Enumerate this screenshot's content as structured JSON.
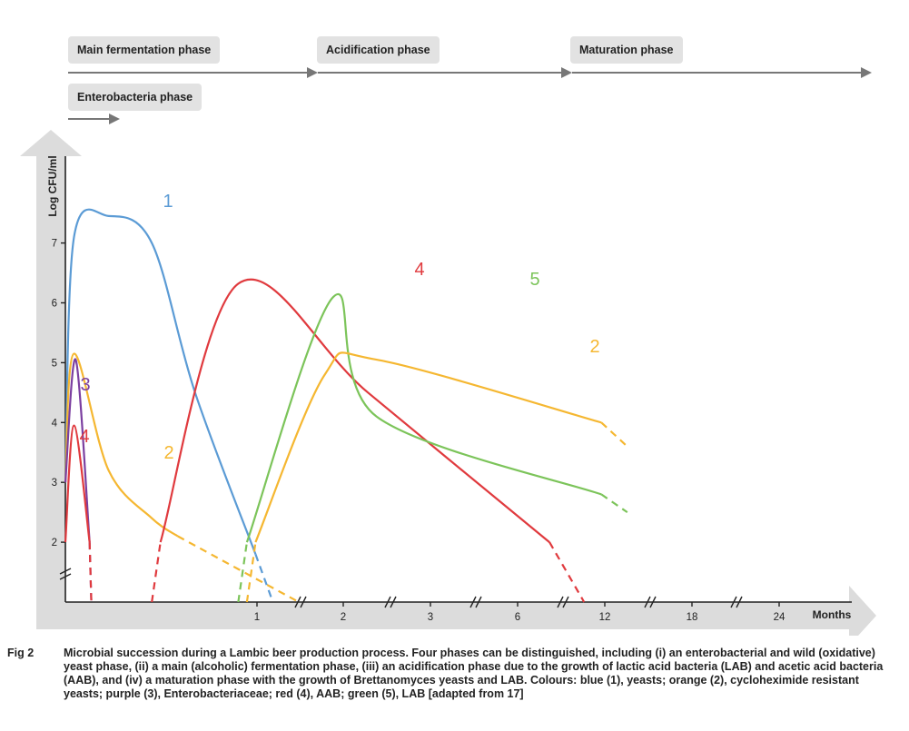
{
  "phases": [
    {
      "label": "Main fermentation phase"
    },
    {
      "label": "Acidification phase"
    },
    {
      "label": "Maturation phase"
    },
    {
      "label": "Enterobacteria phase"
    }
  ],
  "caption": {
    "label": "Fig 2",
    "text": "Microbial succession during a Lambic beer production process. Four phases can be distinguished, including (i) an enterobacterial and wild (oxidative) yeast phase, (ii) a main (alcoholic) fermentation phase, (iii) an acidification phase due to the growth of lactic acid bacteria (LAB) and acetic acid bacteria (AAB), and (iv) a maturation phase with the growth of Brettanomyces yeasts and LAB. Colours: blue (1), yeasts; orange (2), cycloheximide resistant yeasts; purple (3), Enterobacteriaceae; red (4), AAB; green (5), LAB [adapted from 17]"
  },
  "chart_data": {
    "type": "line",
    "ylabel": "Log CFU/ml",
    "xlabel": "Months",
    "x_ticks": [
      "1",
      "2",
      "3",
      "6",
      "12",
      "18",
      "24"
    ],
    "y_ticks": [
      "2",
      "3",
      "4",
      "5",
      "6",
      "7"
    ],
    "ylim": [
      1,
      8
    ],
    "axis_breaks": "y axis below 2; x axis between 1-2, 2-3, 3-6, 6-12, 12-18, 18-24",
    "colors": {
      "1": "#5b9bd5",
      "2": "#f5b731",
      "3": "#7b3fa0",
      "4": "#e03a3e",
      "5": "#7cc45a"
    },
    "series": [
      {
        "name": "1",
        "label": "1",
        "points": [
          [
            0,
            3.0
          ],
          [
            0.1,
            7.1
          ],
          [
            0.5,
            7.45
          ],
          [
            1.0,
            7.0
          ],
          [
            1.5,
            4.5
          ],
          [
            2.2,
            1.8
          ]
        ],
        "dashed_tail": [
          [
            2.2,
            1.8
          ],
          [
            2.4,
            1.0
          ]
        ]
      },
      {
        "name": "2",
        "label": "2",
        "points": [
          [
            0,
            3.0
          ],
          [
            0.1,
            5.15
          ],
          [
            0.5,
            3.2
          ],
          [
            1.0,
            2.4
          ],
          [
            1.3,
            2.1
          ]
        ],
        "dashed_tail": [
          [
            1.3,
            2.1
          ],
          [
            2.7,
            1.0
          ]
        ]
      },
      {
        "name": "3",
        "label": "3",
        "points": [
          [
            0,
            3.0
          ],
          [
            0.12,
            5.05
          ],
          [
            0.28,
            2.0
          ]
        ],
        "dashed_tail": [
          [
            0.28,
            2.0
          ],
          [
            0.3,
            1.0
          ]
        ]
      },
      {
        "name": "4",
        "label": "4",
        "points": [
          [
            0,
            2.0
          ],
          [
            0.1,
            3.95
          ],
          [
            0.28,
            2.0
          ]
        ],
        "dashed_tail": [
          [
            0.28,
            2.0
          ],
          [
            0.3,
            1.0
          ]
        ]
      },
      {
        "name": "4",
        "label": "4",
        "points": [
          [
            1.1,
            2.0
          ],
          [
            2.0,
            6.32
          ],
          [
            3.5,
            4.5
          ],
          [
            5.6,
            2.0
          ]
        ],
        "dashed_head": [
          [
            1.0,
            1.0
          ],
          [
            1.1,
            2.0
          ]
        ],
        "dashed_tail": [
          [
            5.6,
            2.0
          ],
          [
            6.0,
            1.0
          ]
        ]
      },
      {
        "name": "5",
        "label": "5",
        "points": [
          [
            2.1,
            2.0
          ],
          [
            3.1,
            6.1
          ],
          [
            3.6,
            4.1
          ],
          [
            6.2,
            2.8
          ]
        ],
        "dashed_head": [
          [
            2.0,
            1.0
          ],
          [
            2.1,
            2.0
          ]
        ],
        "dashed_tail": [
          [
            6.2,
            2.8
          ],
          [
            6.5,
            2.5
          ]
        ]
      },
      {
        "name": "2",
        "label": "2",
        "points": [
          [
            2.2,
            2.0
          ],
          [
            3.0,
            4.8
          ],
          [
            3.6,
            5.05
          ],
          [
            6.2,
            4.0
          ]
        ],
        "dashed_head": [
          [
            2.1,
            1.0
          ],
          [
            2.2,
            2.0
          ]
        ],
        "dashed_tail": [
          [
            6.2,
            4.0
          ],
          [
            6.5,
            3.6
          ]
        ]
      }
    ]
  }
}
